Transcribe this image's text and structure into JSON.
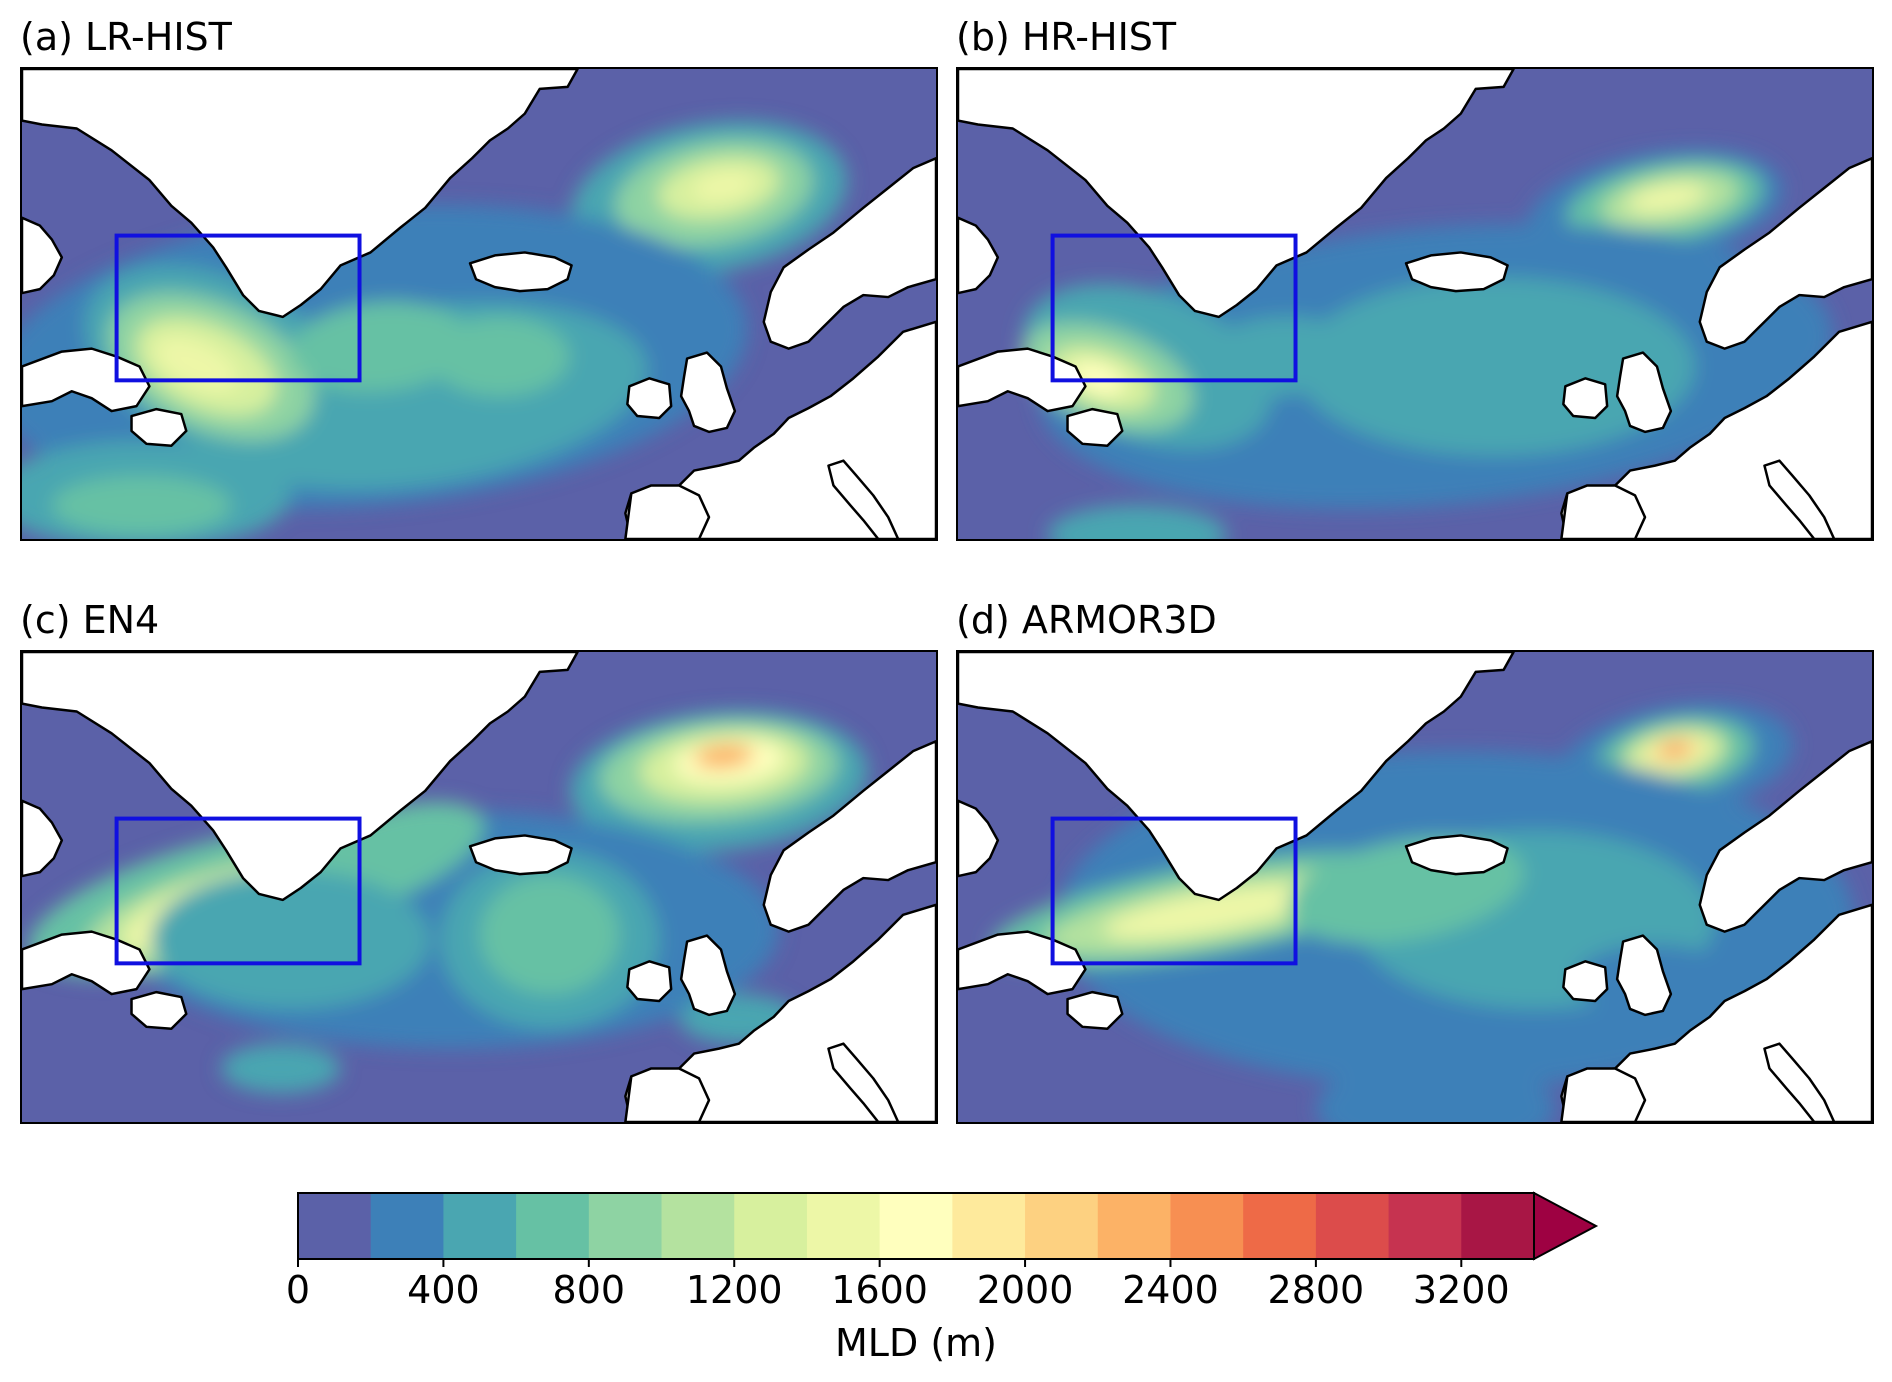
{
  "panels": [
    {
      "id": "a",
      "title": "(a) LR-HIST"
    },
    {
      "id": "b",
      "title": "(b) HR-HIST"
    },
    {
      "id": "c",
      "title": "(c) EN4"
    },
    {
      "id": "d",
      "title": "(d) ARMOR3D"
    }
  ],
  "colorbar": {
    "label": "MLD (m)",
    "ticks": [
      "0",
      "400",
      "800",
      "1200",
      "1600",
      "2000",
      "2400",
      "2800",
      "3200"
    ],
    "levels": [
      0,
      200,
      400,
      600,
      800,
      1000,
      1200,
      1400,
      1600,
      1800,
      2000,
      2200,
      2400,
      2600,
      2800,
      3000,
      3200,
      3400
    ],
    "colors": [
      "#5b61a8",
      "#3d80b8",
      "#4aa6b1",
      "#66c1a4",
      "#8ed3a3",
      "#b4e29f",
      "#d7f09e",
      "#edf7a7",
      "#ffffbe",
      "#feea9c",
      "#fdd181",
      "#fcb266",
      "#f78f52",
      "#ee6a47",
      "#dc4c4b",
      "#c63350",
      "#a81645"
    ],
    "extend_color": "#9e0142",
    "extend": "max"
  },
  "box_color": "#1010e0"
}
